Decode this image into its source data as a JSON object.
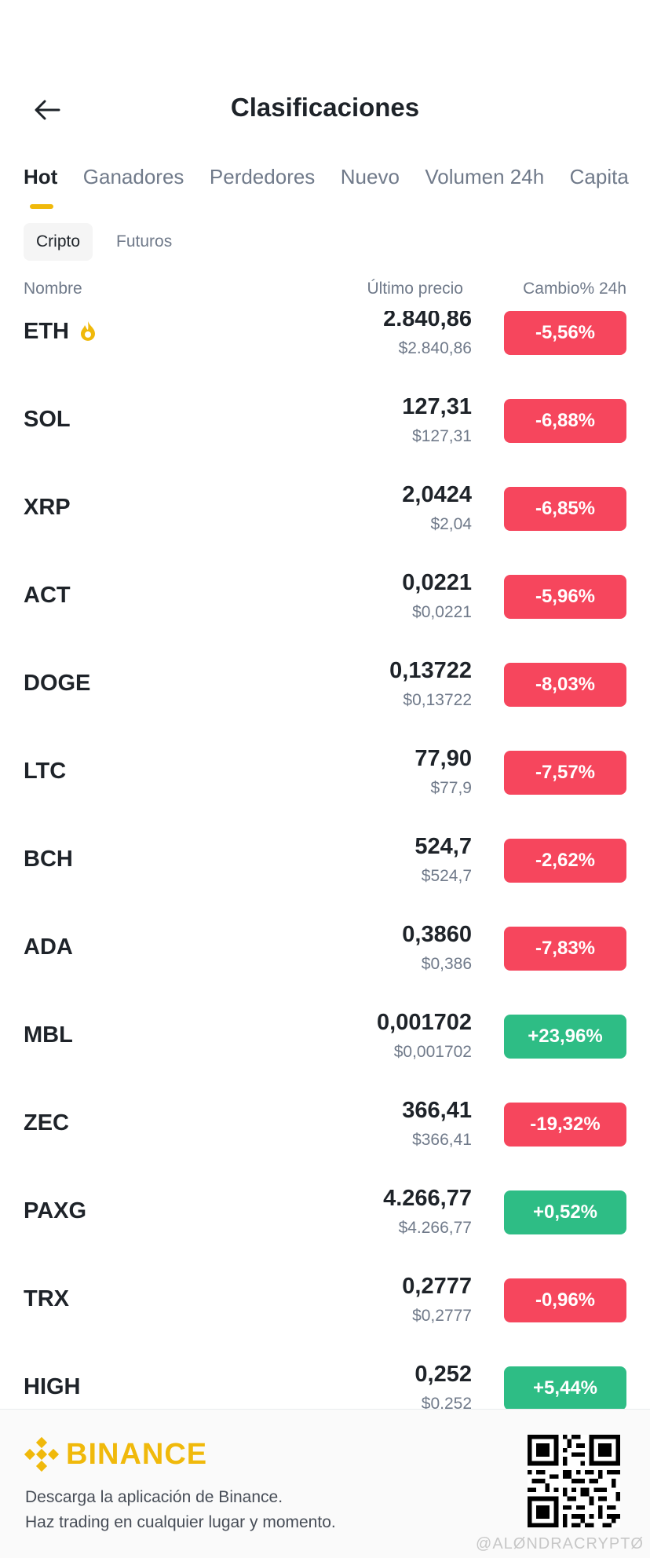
{
  "header": {
    "title": "Clasificaciones"
  },
  "tabs": [
    "Hot",
    "Ganadores",
    "Perdedores",
    "Nuevo",
    "Volumen 24h",
    "Capita"
  ],
  "subtabs": [
    "Cripto",
    "Futuros"
  ],
  "columns": {
    "name": "Nombre",
    "price": "Último precio",
    "change": "Cambio% 24h"
  },
  "rows": [
    {
      "symbol": "ETH",
      "price": "2.840,86",
      "usd": "$2.840,86",
      "change": "-5,56%",
      "trend": "neg"
    },
    {
      "symbol": "SOL",
      "price": "127,31",
      "usd": "$127,31",
      "change": "-6,88%",
      "trend": "neg"
    },
    {
      "symbol": "XRP",
      "price": "2,0424",
      "usd": "$2,04",
      "change": "-6,85%",
      "trend": "neg"
    },
    {
      "symbol": "ACT",
      "price": "0,0221",
      "usd": "$0,0221",
      "change": "-5,96%",
      "trend": "neg"
    },
    {
      "symbol": "DOGE",
      "price": "0,13722",
      "usd": "$0,13722",
      "change": "-8,03%",
      "trend": "neg"
    },
    {
      "symbol": "LTC",
      "price": "77,90",
      "usd": "$77,9",
      "change": "-7,57%",
      "trend": "neg"
    },
    {
      "symbol": "BCH",
      "price": "524,7",
      "usd": "$524,7",
      "change": "-2,62%",
      "trend": "neg"
    },
    {
      "symbol": "ADA",
      "price": "0,3860",
      "usd": "$0,386",
      "change": "-7,83%",
      "trend": "neg"
    },
    {
      "symbol": "MBL",
      "price": "0,001702",
      "usd": "$0,001702",
      "change": "+23,96%",
      "trend": "pos"
    },
    {
      "symbol": "ZEC",
      "price": "366,41",
      "usd": "$366,41",
      "change": "-19,32%",
      "trend": "neg"
    },
    {
      "symbol": "PAXG",
      "price": "4.266,77",
      "usd": "$4.266,77",
      "change": "+0,52%",
      "trend": "pos"
    },
    {
      "symbol": "TRX",
      "price": "0,2777",
      "usd": "$0,2777",
      "change": "-0,96%",
      "trend": "neg"
    },
    {
      "symbol": "HIGH",
      "price": "0,252",
      "usd": "$0,252",
      "change": "+5,44%",
      "trend": "pos"
    }
  ],
  "footer": {
    "brand": "BINANCE",
    "line1": "Descarga la aplicación de Binance.",
    "line2": "Haz trading en cualquier lugar y momento.",
    "watermark": "@ALØNDRACRYPTØ"
  },
  "colors": {
    "accent": "#f0b90b",
    "negative": "#f6465d",
    "positive": "#2ebd85"
  },
  "icons": {
    "back": "arrow-left-icon",
    "hot": "fire-icon",
    "logo": "binance-logo-icon",
    "qr": "qr-code-icon"
  }
}
